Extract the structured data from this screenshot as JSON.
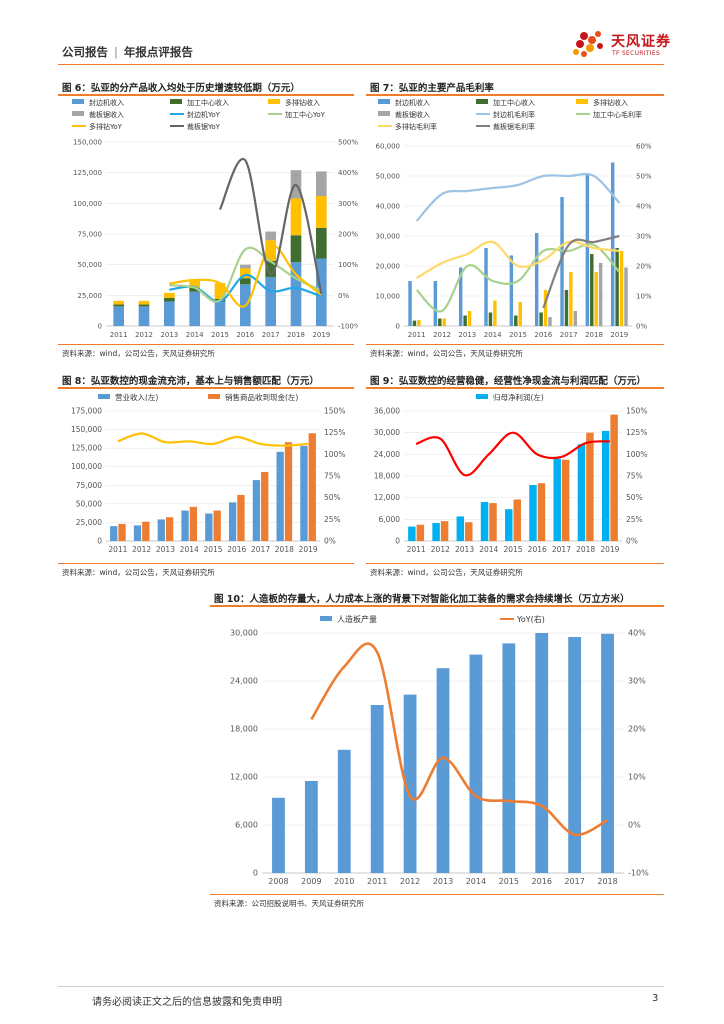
{
  "header": {
    "left": "公司报告",
    "right": "年报点评报告",
    "logo_cn": "天风证券",
    "logo_en": "TF SECURITIES"
  },
  "footer": {
    "disclaimer": "请务必阅读正文之后的信息披露和免责申明",
    "page": "3"
  },
  "figures": {
    "fig6": {
      "title": "图 6：弘亚的分产品收入均处于历史增速较低期（万元）",
      "source": "资料来源：wind，公司公告，天风证券研究所"
    },
    "fig7": {
      "title": "图 7：弘亚的主要产品毛利率",
      "source": "资料来源：wind，公司公告，天风证券研究所"
    },
    "fig8": {
      "title": "图 8：弘亚数控的现金流充沛，基本上与销售额匹配（万元）",
      "source": "资料来源：wind，公司公告，天风证券研究所"
    },
    "fig9": {
      "title": "图 9：弘亚数控的经营稳健，经营性净现金流与利润匹配（万元）",
      "source": "资料来源：wind，公司公告，天风证券研究所"
    },
    "fig10": {
      "title": "图 10：人造板的存量大，人力成本上涨的背景下对智能化加工装备的需求会持续增长（万立方米）",
      "source": "资料来源：公司招股说明书、天风证券研究所"
    }
  },
  "chart_data": [
    {
      "id": "fig6",
      "type": "bar",
      "stacked": true,
      "categories": [
        "2011",
        "2012",
        "2013",
        "2014",
        "2015",
        "2016",
        "2017",
        "2018",
        "2019"
      ],
      "series": [
        {
          "name": "封边机收入",
          "color": "#5b9bd5",
          "values": [
            16000,
            16000,
            20000,
            28000,
            20000,
            34000,
            40000,
            52000,
            55000
          ]
        },
        {
          "name": "加工中心收入",
          "color": "#3f6e30",
          "values": [
            1500,
            1500,
            3000,
            3000,
            2000,
            5000,
            13000,
            22000,
            25000
          ]
        },
        {
          "name": "多排钻收入",
          "color": "#ffc000",
          "values": [
            3000,
            3000,
            4000,
            6000,
            13000,
            8000,
            17000,
            30000,
            26000
          ]
        },
        {
          "name": "裁板锯收入",
          "color": "#a5a5a5",
          "values": [
            0,
            0,
            0,
            0,
            0,
            3000,
            7000,
            23000,
            20000
          ]
        }
      ],
      "lines": [
        {
          "name": "封边机YoY",
          "color": "#22a6e8",
          "values": [
            null,
            null,
            18,
            27,
            -20,
            66,
            14,
            24,
            -4
          ]
        },
        {
          "name": "加工中心YoY",
          "color": "#a9d18e",
          "values": [
            null,
            null,
            33,
            25,
            -16,
            150,
            110,
            55,
            15
          ]
        },
        {
          "name": "多排钻YoY",
          "color": "#ffc000",
          "values": [
            null,
            null,
            38,
            50,
            40,
            -34,
            160,
            68,
            2
          ]
        },
        {
          "name": "裁板锯YoY",
          "color": "#666666",
          "values": [
            null,
            null,
            null,
            null,
            null,
            null,
            null,
            null,
            null
          ],
          "values_note": "plotted from 2015",
          "points": [
            [
              2015,
              280
            ],
            [
              2016,
              440
            ],
            [
              2017,
              70
            ],
            [
              2018,
              360
            ],
            [
              2019,
              5
            ]
          ]
        }
      ],
      "ylim_left": [
        0,
        150000
      ],
      "yticks_left": [
        "150,000",
        "125,000",
        "100,000",
        "75,000",
        "50,000",
        "25,000",
        "0"
      ],
      "ylim_right": [
        -100,
        500
      ],
      "yticks_right": [
        "500%",
        "400%",
        "300%",
        "200%",
        "100%",
        "0%",
        "-100%"
      ]
    },
    {
      "id": "fig7",
      "type": "bar",
      "categories": [
        "2011",
        "2012",
        "2013",
        "2014",
        "2015",
        "2016",
        "2017",
        "2018",
        "2019"
      ],
      "series": [
        {
          "name": "封边机收入",
          "color": "#5b9bd5",
          "values": [
            15000,
            15000,
            19500,
            26000,
            23500,
            31000,
            43000,
            51000,
            54500
          ]
        },
        {
          "name": "加工中心收入",
          "color": "#3f6e30",
          "values": [
            1800,
            2500,
            3500,
            4500,
            3500,
            4500,
            12000,
            24000,
            26000
          ]
        },
        {
          "name": "多排钻收入",
          "color": "#ffc000",
          "values": [
            2000,
            2500,
            5000,
            8500,
            8000,
            12000,
            18000,
            18000,
            25000
          ]
        },
        {
          "name": "裁板锯收入",
          "color": "#a5a5a5",
          "values": [
            0,
            0,
            0,
            0,
            0,
            3000,
            5000,
            21000,
            19500
          ]
        }
      ],
      "lines": [
        {
          "name": "封边机毛利率",
          "color": "#9dc3e6",
          "values": [
            35,
            44,
            45,
            46,
            47,
            50,
            50,
            50,
            41
          ]
        },
        {
          "name": "加工中心毛利率",
          "color": "#a9d18e",
          "values": [
            12,
            5,
            20,
            15,
            15,
            25,
            25,
            27,
            18
          ]
        },
        {
          "name": "多排钻毛利率",
          "color": "#ffd966",
          "values": [
            16,
            21,
            24,
            28,
            20,
            22,
            28,
            26,
            25
          ]
        },
        {
          "name": "裁板锯毛利率",
          "color": "#7f7f7f",
          "values": [
            null,
            null,
            null,
            null,
            null,
            6,
            27,
            28,
            30
          ]
        }
      ],
      "ylim_left": [
        0,
        60000
      ],
      "yticks_left": [
        "60,000",
        "50,000",
        "40,000",
        "30,000",
        "20,000",
        "10,000",
        "0"
      ],
      "ylim_right": [
        0,
        60
      ],
      "yticks_right": [
        "60%",
        "50%",
        "40%",
        "30%",
        "20%",
        "10%",
        "0%"
      ]
    },
    {
      "id": "fig8",
      "type": "bar",
      "categories": [
        "2011",
        "2012",
        "2013",
        "2014",
        "2015",
        "2016",
        "2017",
        "2018",
        "2019"
      ],
      "series": [
        {
          "name": "营业收入(左)",
          "color": "#5b9bd5",
          "values": [
            20000,
            21000,
            29000,
            41000,
            37000,
            52000,
            82000,
            120000,
            128000
          ]
        },
        {
          "name": "销售商品收到现金(左)",
          "color": "#ed7d31",
          "values": [
            23000,
            26000,
            32000,
            46000,
            41000,
            62000,
            93000,
            133000,
            145000
          ]
        }
      ],
      "lines": [
        {
          "name": "回款率(右)",
          "color": "#ffc000",
          "values": [
            115,
            124,
            114,
            115,
            112,
            120,
            112,
            110,
            112
          ]
        }
      ],
      "ylim_left": [
        0,
        175000
      ],
      "yticks_left": [
        "175,000",
        "150,000",
        "125,000",
        "100,000",
        "75,000",
        "50,000",
        "25,000",
        "0"
      ],
      "ylim_right": [
        0,
        150
      ],
      "yticks_right": [
        "150%",
        "125%",
        "100%",
        "75%",
        "50%",
        "25%",
        "0%"
      ]
    },
    {
      "id": "fig9",
      "type": "bar",
      "categories": [
        "2011",
        "2012",
        "2013",
        "2014",
        "2015",
        "2016",
        "2017",
        "2018",
        "2019"
      ],
      "series": [
        {
          "name": "归母净利润(左)",
          "color": "#00b0f0",
          "values": [
            4000,
            5000,
            6800,
            10800,
            8800,
            15500,
            22800,
            26800,
            30500
          ]
        },
        {
          "name": "经营性净现金流(左)",
          "color": "#ed7d31",
          "values": [
            4500,
            5500,
            5200,
            10500,
            11500,
            16000,
            22500,
            30000,
            35000
          ]
        }
      ],
      "lines": [
        {
          "name": "现金流/利润(右)",
          "color": "#ff0000",
          "values": [
            112,
            118,
            76,
            100,
            125,
            100,
            97,
            113,
            115
          ]
        }
      ],
      "ylim_left": [
        0,
        36000
      ],
      "yticks_left": [
        "36,000",
        "30,000",
        "24,000",
        "18,000",
        "12,000",
        "6,000",
        "0"
      ],
      "ylim_right": [
        0,
        150
      ],
      "yticks_right": [
        "150%",
        "125%",
        "100%",
        "75%",
        "50%",
        "25%",
        "0%"
      ]
    },
    {
      "id": "fig10",
      "type": "bar",
      "categories": [
        "2008",
        "2009",
        "2010",
        "2011",
        "2012",
        "2013",
        "2014",
        "2015",
        "2016",
        "2017",
        "2018"
      ],
      "series": [
        {
          "name": "人造板产量",
          "color": "#5b9bd5",
          "values": [
            9400,
            11500,
            15400,
            21000,
            22300,
            25600,
            27300,
            28700,
            30000,
            29500,
            29900
          ]
        }
      ],
      "lines": [
        {
          "name": "YoY(右)",
          "color": "#ed7d31",
          "values": [
            null,
            22,
            33,
            36,
            6,
            14,
            6,
            5,
            4,
            -2,
            1
          ]
        }
      ],
      "ylim_left": [
        0,
        30000
      ],
      "yticks_left": [
        "30,000",
        "24,000",
        "18,000",
        "12,000",
        "6,000",
        "0"
      ],
      "ylim_right": [
        -10,
        40
      ],
      "yticks_right": [
        "40%",
        "30%",
        "20%",
        "10%",
        "0%",
        "-10%"
      ]
    }
  ]
}
